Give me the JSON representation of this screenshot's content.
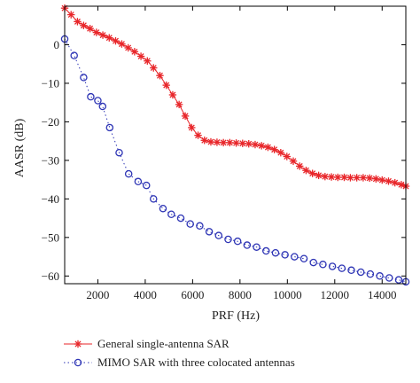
{
  "chart_data": {
    "type": "line",
    "title": "",
    "xlabel": "PRF (Hz)",
    "ylabel": "AASR (dB)",
    "xlim": [
      600,
      15000
    ],
    "ylim": [
      -62,
      10
    ],
    "xticks": [
      2000,
      4000,
      6000,
      8000,
      10000,
      12000,
      14000
    ],
    "yticks": [
      0,
      -10,
      -20,
      -30,
      -40,
      -50,
      -60
    ],
    "grid": false,
    "legend_position": "bottom",
    "series": [
      {
        "name": "General single-antenna SAR",
        "color": "#e8262a",
        "marker": "star",
        "line": "solid",
        "x": [
          600,
          870,
          1140,
          1400,
          1670,
          1940,
          2210,
          2480,
          2750,
          3010,
          3280,
          3550,
          3820,
          4090,
          4350,
          4620,
          4890,
          5160,
          5430,
          5690,
          5960,
          6230,
          6500,
          6770,
          7030,
          7300,
          7570,
          7840,
          8110,
          8370,
          8640,
          8910,
          9180,
          9450,
          9720,
          9980,
          10250,
          10520,
          10790,
          11060,
          11320,
          11590,
          11860,
          12130,
          12400,
          12660,
          12930,
          13200,
          13470,
          13740,
          14000,
          14270,
          14540,
          14810,
          15000
        ],
        "y": [
          9.5,
          7.8,
          6.0,
          5.0,
          4.2,
          3.2,
          2.5,
          1.8,
          1.0,
          0.2,
          -0.8,
          -1.8,
          -3.0,
          -4.2,
          -6.0,
          -8.0,
          -10.5,
          -13.0,
          -15.5,
          -18.5,
          -21.5,
          -23.5,
          -24.8,
          -25.2,
          -25.3,
          -25.4,
          -25.4,
          -25.5,
          -25.6,
          -25.7,
          -25.9,
          -26.2,
          -26.6,
          -27.2,
          -28.0,
          -29.0,
          -30.2,
          -31.5,
          -32.6,
          -33.4,
          -33.9,
          -34.2,
          -34.3,
          -34.4,
          -34.4,
          -34.5,
          -34.5,
          -34.5,
          -34.6,
          -34.8,
          -35.1,
          -35.4,
          -35.8,
          -36.3,
          -36.7
        ]
      },
      {
        "name": "MIMO SAR with three colocated antennas",
        "color": "#2e35b5",
        "marker": "circle",
        "line": "dotted",
        "x": [
          600,
          1000,
          1400,
          1700,
          2000,
          2200,
          2500,
          2900,
          3300,
          3700,
          4050,
          4350,
          4750,
          5100,
          5500,
          5900,
          6300,
          6700,
          7100,
          7500,
          7900,
          8300,
          8700,
          9100,
          9500,
          9900,
          10300,
          10700,
          11100,
          11500,
          11900,
          12300,
          12700,
          13100,
          13500,
          13900,
          14300,
          14700,
          15000
        ],
        "y": [
          1.5,
          -2.8,
          -8.5,
          -13.5,
          -14.5,
          -16.0,
          -21.5,
          -28.0,
          -33.5,
          -35.5,
          -36.5,
          -40.0,
          -42.5,
          -44.0,
          -45.0,
          -46.5,
          -47.0,
          -48.5,
          -49.5,
          -50.5,
          -51.0,
          -52.0,
          -52.5,
          -53.5,
          -54.0,
          -54.5,
          -55.0,
          -55.5,
          -56.5,
          -57.0,
          -57.5,
          -58.0,
          -58.5,
          -59.0,
          -59.5,
          -60.0,
          -60.5,
          -61.0,
          -61.5
        ]
      }
    ]
  }
}
